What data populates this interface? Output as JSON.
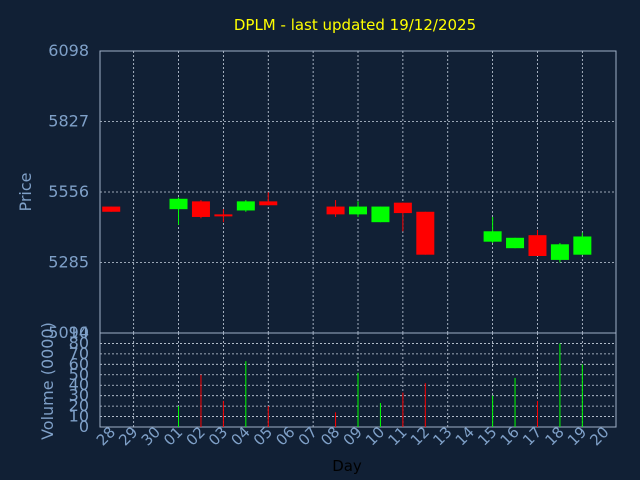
{
  "colors": {
    "background": "#112035",
    "panel_border": "#9fb0c8",
    "grid": "#c8d2e0",
    "title": "#ffff00",
    "axis_text": "#7fa0c8",
    "up": "#00ff00",
    "down": "#ff0000"
  },
  "chart_data": [
    {
      "type": "candlestick",
      "title": "DPLM - last updated 19/12/2025",
      "ylabel": "Price",
      "ylim": [
        5014,
        6098
      ],
      "yticks": [
        "6098",
        "5827",
        "5556",
        "5285",
        "5014"
      ],
      "grid": true,
      "categories": [
        "28",
        "29",
        "30",
        "01",
        "02",
        "03",
        "04",
        "05",
        "06",
        "07",
        "08",
        "09",
        "10",
        "11",
        "12",
        "13",
        "14",
        "15",
        "16",
        "17",
        "18",
        "19",
        "20"
      ],
      "candles": [
        {
          "day": "28",
          "open": 5500,
          "close": 5480,
          "high": 5500,
          "low": 5480
        },
        {
          "day": "01",
          "open": 5490,
          "close": 5530,
          "high": 5535,
          "low": 5430
        },
        {
          "day": "02",
          "open": 5520,
          "close": 5460,
          "high": 5525,
          "low": 5455
        },
        {
          "day": "03",
          "open": 5470,
          "close": 5465,
          "high": 5490,
          "low": 5440
        },
        {
          "day": "04",
          "open": 5485,
          "close": 5520,
          "high": 5525,
          "low": 5480
        },
        {
          "day": "05",
          "open": 5520,
          "close": 5505,
          "high": 5555,
          "low": 5505
        },
        {
          "day": "08",
          "open": 5500,
          "close": 5470,
          "high": 5525,
          "low": 5460
        },
        {
          "day": "09",
          "open": 5470,
          "close": 5500,
          "high": 5520,
          "low": 5460
        },
        {
          "day": "10",
          "open": 5440,
          "close": 5500,
          "high": 5500,
          "low": 5440
        },
        {
          "day": "11",
          "open": 5515,
          "close": 5475,
          "high": 5515,
          "low": 5405
        },
        {
          "day": "12",
          "open": 5480,
          "close": 5315,
          "high": 5480,
          "low": 5315
        },
        {
          "day": "15",
          "open": 5365,
          "close": 5405,
          "high": 5460,
          "low": 5360
        },
        {
          "day": "16",
          "open": 5340,
          "close": 5380,
          "high": 5380,
          "low": 5340
        },
        {
          "day": "17",
          "open": 5390,
          "close": 5310,
          "high": 5410,
          "low": 5310
        },
        {
          "day": "18",
          "open": 5295,
          "close": 5355,
          "high": 5360,
          "low": 5285
        },
        {
          "day": "19",
          "open": 5315,
          "close": 5385,
          "high": 5400,
          "low": 5315
        }
      ]
    },
    {
      "type": "bar",
      "ylabel": "Volume (0000)",
      "xlabel": "Day",
      "ylim": [
        0,
        90
      ],
      "yticks": [
        "90",
        "80",
        "70",
        "60",
        "50",
        "40",
        "30",
        "20",
        "10",
        "0"
      ],
      "grid": true,
      "categories": [
        "28",
        "29",
        "30",
        "01",
        "02",
        "03",
        "04",
        "05",
        "06",
        "07",
        "08",
        "09",
        "10",
        "11",
        "12",
        "13",
        "14",
        "15",
        "16",
        "17",
        "18",
        "19",
        "20"
      ],
      "volumes": [
        {
          "day": "01",
          "value": 20,
          "dir": "up"
        },
        {
          "day": "02",
          "value": 50,
          "dir": "down"
        },
        {
          "day": "03",
          "value": 25,
          "dir": "down"
        },
        {
          "day": "04",
          "value": 63,
          "dir": "up"
        },
        {
          "day": "05",
          "value": 20,
          "dir": "down"
        },
        {
          "day": "08",
          "value": 14,
          "dir": "down"
        },
        {
          "day": "09",
          "value": 52,
          "dir": "up"
        },
        {
          "day": "10",
          "value": 23,
          "dir": "up"
        },
        {
          "day": "11",
          "value": 33,
          "dir": "down"
        },
        {
          "day": "12",
          "value": 42,
          "dir": "down"
        },
        {
          "day": "15",
          "value": 30,
          "dir": "up"
        },
        {
          "day": "16",
          "value": 47,
          "dir": "up"
        },
        {
          "day": "17",
          "value": 25,
          "dir": "down"
        },
        {
          "day": "18",
          "value": 80,
          "dir": "up"
        },
        {
          "day": "19",
          "value": 60,
          "dir": "up"
        }
      ]
    }
  ]
}
